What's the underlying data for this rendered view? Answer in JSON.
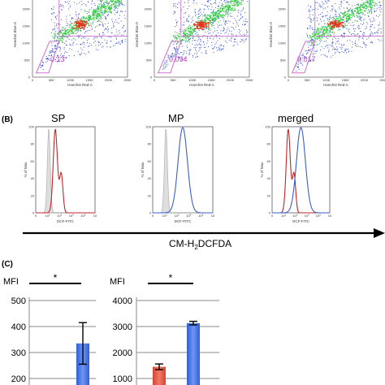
{
  "panels": {
    "b_label": "(B)",
    "c_label": "(C)"
  },
  "chart_data": [
    {
      "type": "scatter",
      "id": "flow-dot-plots",
      "plots": [
        {
          "gate_value": "0.13"
        },
        {
          "gate_value": "0.094"
        },
        {
          "gate_value": "0.017"
        }
      ],
      "xlabel": "Hoechst Red-A",
      "ylabel": "Hoechst Blue-A",
      "x_ticks": [
        "0",
        "50K",
        "100K",
        "150K",
        "200K",
        "250K"
      ],
      "y_ticks": [
        "0",
        "50K",
        "100K",
        "150K",
        "200K",
        "250K"
      ],
      "colors": {
        "dense": "#e8321e",
        "mid": "#2fcf3a",
        "sparse": "#1f3fd0",
        "gate": "#d070d0"
      }
    },
    {
      "type": "line",
      "id": "histograms",
      "plots": [
        {
          "title": "SP",
          "curves": [
            "control",
            "red"
          ]
        },
        {
          "title": "MP",
          "curves": [
            "control",
            "blue"
          ]
        },
        {
          "title": "merged",
          "curves": [
            "red",
            "blue"
          ]
        }
      ],
      "xlabel": "DCF-FITC",
      "ylabel": "% of Max",
      "y_ticks": [
        "0",
        "20",
        "40",
        "60",
        "80",
        "100"
      ],
      "x_ticks": [
        "0",
        "10",
        "10",
        "10",
        "10",
        "10"
      ],
      "x_tick_exponents": [
        "",
        "2",
        "3",
        "4",
        "5",
        ""
      ],
      "colors": {
        "control": "#c8c8c8",
        "red": "#c0262a",
        "blue": "#3a5fc8"
      },
      "arrow_label": {
        "main": "CM-H",
        "sub": "2",
        "rest": "DCFDA"
      }
    },
    {
      "type": "bar",
      "id": "mfi-left",
      "ylabel": "MFI",
      "y_ticks": [
        200,
        300,
        400,
        500
      ],
      "ylim": [
        200,
        500
      ],
      "bars": [
        {
          "value": 335,
          "error": 80,
          "color": "#3f6fe0"
        }
      ],
      "significance": "*"
    },
    {
      "type": "bar",
      "id": "mfi-right",
      "ylabel": "MFI",
      "y_ticks": [
        1000,
        2000,
        3000,
        4000
      ],
      "ylim": [
        1000,
        4000
      ],
      "bars": [
        {
          "value": 1450,
          "error": 110,
          "color": "#e8553f"
        },
        {
          "value": 3130,
          "error": 70,
          "color": "#3f6fe0"
        }
      ],
      "significance": "*"
    }
  ]
}
